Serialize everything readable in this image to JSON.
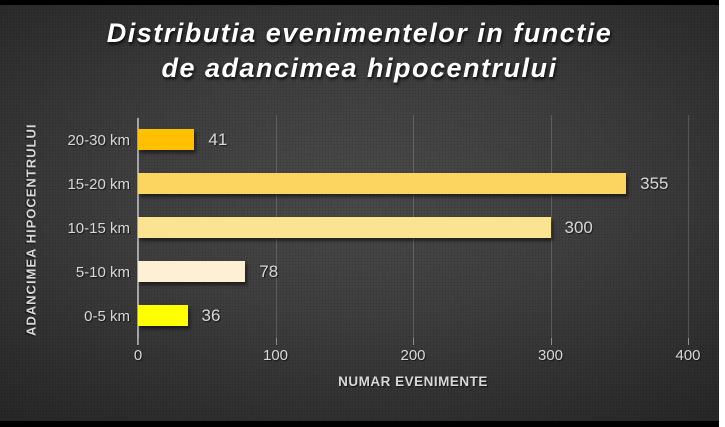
{
  "title": {
    "line1": "Distributia evenimentelor in functie",
    "line2": "de adancimea hipocentrului"
  },
  "chart_data": {
    "type": "bar",
    "orientation": "horizontal",
    "title": "Distributia evenimentelor in functie de adancimea hipocentrului",
    "categories": [
      "20-30 km",
      "15-20 km",
      "10-15 km",
      "5-10 km",
      "0-5 km"
    ],
    "values": [
      41,
      355,
      300,
      78,
      36
    ],
    "data_labels": [
      "41",
      "355",
      "300",
      "78",
      "36"
    ],
    "bar_colors": [
      "#FFC000",
      "#FBD55F",
      "#FCE392",
      "#FDF0D4",
      "#FFFF00"
    ],
    "xlabel": "NUMAR EVENIMENTE",
    "ylabel": "ADANCIMEA HIPOCENTRULUI",
    "xlim": [
      0,
      400
    ],
    "x_ticks": [
      "0",
      "100",
      "200",
      "300",
      "400"
    ],
    "grid": true,
    "legend": false
  },
  "colors": {
    "title_text": "#FFFFFF",
    "label_text": "#D9D9D9",
    "axis_line": "#A6A6A6",
    "gridline": "#57544F",
    "background_center": "#4D4D4D",
    "background_edge": "#212121",
    "frame": "#000000"
  }
}
